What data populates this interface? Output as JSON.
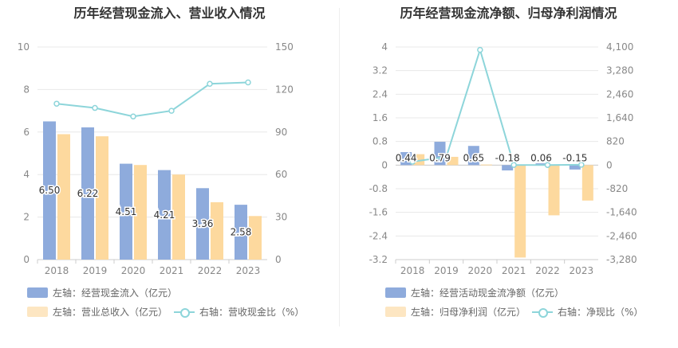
{
  "chart_data": [
    {
      "type": "bar",
      "title": "历年经营现金流入、营业收入情况",
      "categories": [
        "2018",
        "2019",
        "2020",
        "2021",
        "2022",
        "2023"
      ],
      "y_left": {
        "ylim": [
          0,
          10
        ],
        "ticks": [
          "0",
          "2",
          "4",
          "6",
          "8",
          "10"
        ]
      },
      "y_right": {
        "ylim": [
          0,
          150
        ],
        "ticks": [
          "0",
          "30",
          "60",
          "90",
          "120",
          "150"
        ]
      },
      "series": [
        {
          "name": "左轴：经营现金流入（亿元）",
          "axis": "left",
          "kind": "bar",
          "color": "#8eabdc",
          "values": [
            6.5,
            6.22,
            4.51,
            4.21,
            3.36,
            2.58
          ],
          "labels": [
            "6.50",
            "6.22",
            "4.51",
            "4.21",
            "3.36",
            "2.58"
          ]
        },
        {
          "name": "左轴：营业总收入（亿元）",
          "axis": "left",
          "kind": "bar",
          "color": "#fdd99e",
          "values": [
            5.9,
            5.8,
            4.45,
            4.0,
            2.7,
            2.05
          ]
        },
        {
          "name": "右轴：营收现金比（%）",
          "axis": "right",
          "kind": "line",
          "color": "#8dd5da",
          "values": [
            110,
            107,
            101,
            105,
            124,
            125
          ]
        }
      ],
      "legend": [
        "左轴：经营现金流入（亿元）",
        "左轴：营业总收入（亿元）",
        "右轴：营收现金比（%）"
      ]
    },
    {
      "type": "bar",
      "title": "历年经营现金流净额、归母净利润情况",
      "categories": [
        "2018",
        "2019",
        "2020",
        "2021",
        "2022",
        "2023"
      ],
      "y_left": {
        "ylim": [
          -3.2,
          4
        ],
        "ticks": [
          "4",
          "3.2",
          "2.4",
          "1.6",
          "0.8",
          "0",
          "-0.8",
          "-1.6",
          "-2.4",
          "-3.2"
        ]
      },
      "y_right": {
        "ylim": [
          -3280,
          4100
        ],
        "ticks": [
          "4,100",
          "3,280",
          "2,460",
          "1,640",
          "820",
          "0",
          "-820",
          "-1,640",
          "-2,460",
          "-3,280"
        ]
      },
      "series": [
        {
          "name": "左轴：经营活动现金流净额（亿元）",
          "axis": "left",
          "kind": "bar",
          "color": "#8eabdc",
          "values": [
            0.44,
            0.79,
            0.65,
            -0.18,
            0.06,
            -0.15
          ],
          "labels": [
            "0.44",
            "0.79",
            "0.65",
            "-0.18",
            "0.06",
            "-0.15"
          ]
        },
        {
          "name": "左轴：归母净利润（亿元）",
          "axis": "left",
          "kind": "bar",
          "color": "#fdd99e",
          "values": [
            0.37,
            0.28,
            0.02,
            -3.13,
            -1.7,
            -1.2
          ]
        },
        {
          "name": "右轴：净现比（%）",
          "axis": "right",
          "kind": "line",
          "color": "#8dd5da",
          "values": [
            119,
            282,
            4000,
            6,
            4,
            13
          ]
        }
      ],
      "legend": [
        "左轴：经营活动现金流净额（亿元）",
        "左轴：归母净利润（亿元）",
        "右轴：净现比（%）"
      ]
    }
  ]
}
